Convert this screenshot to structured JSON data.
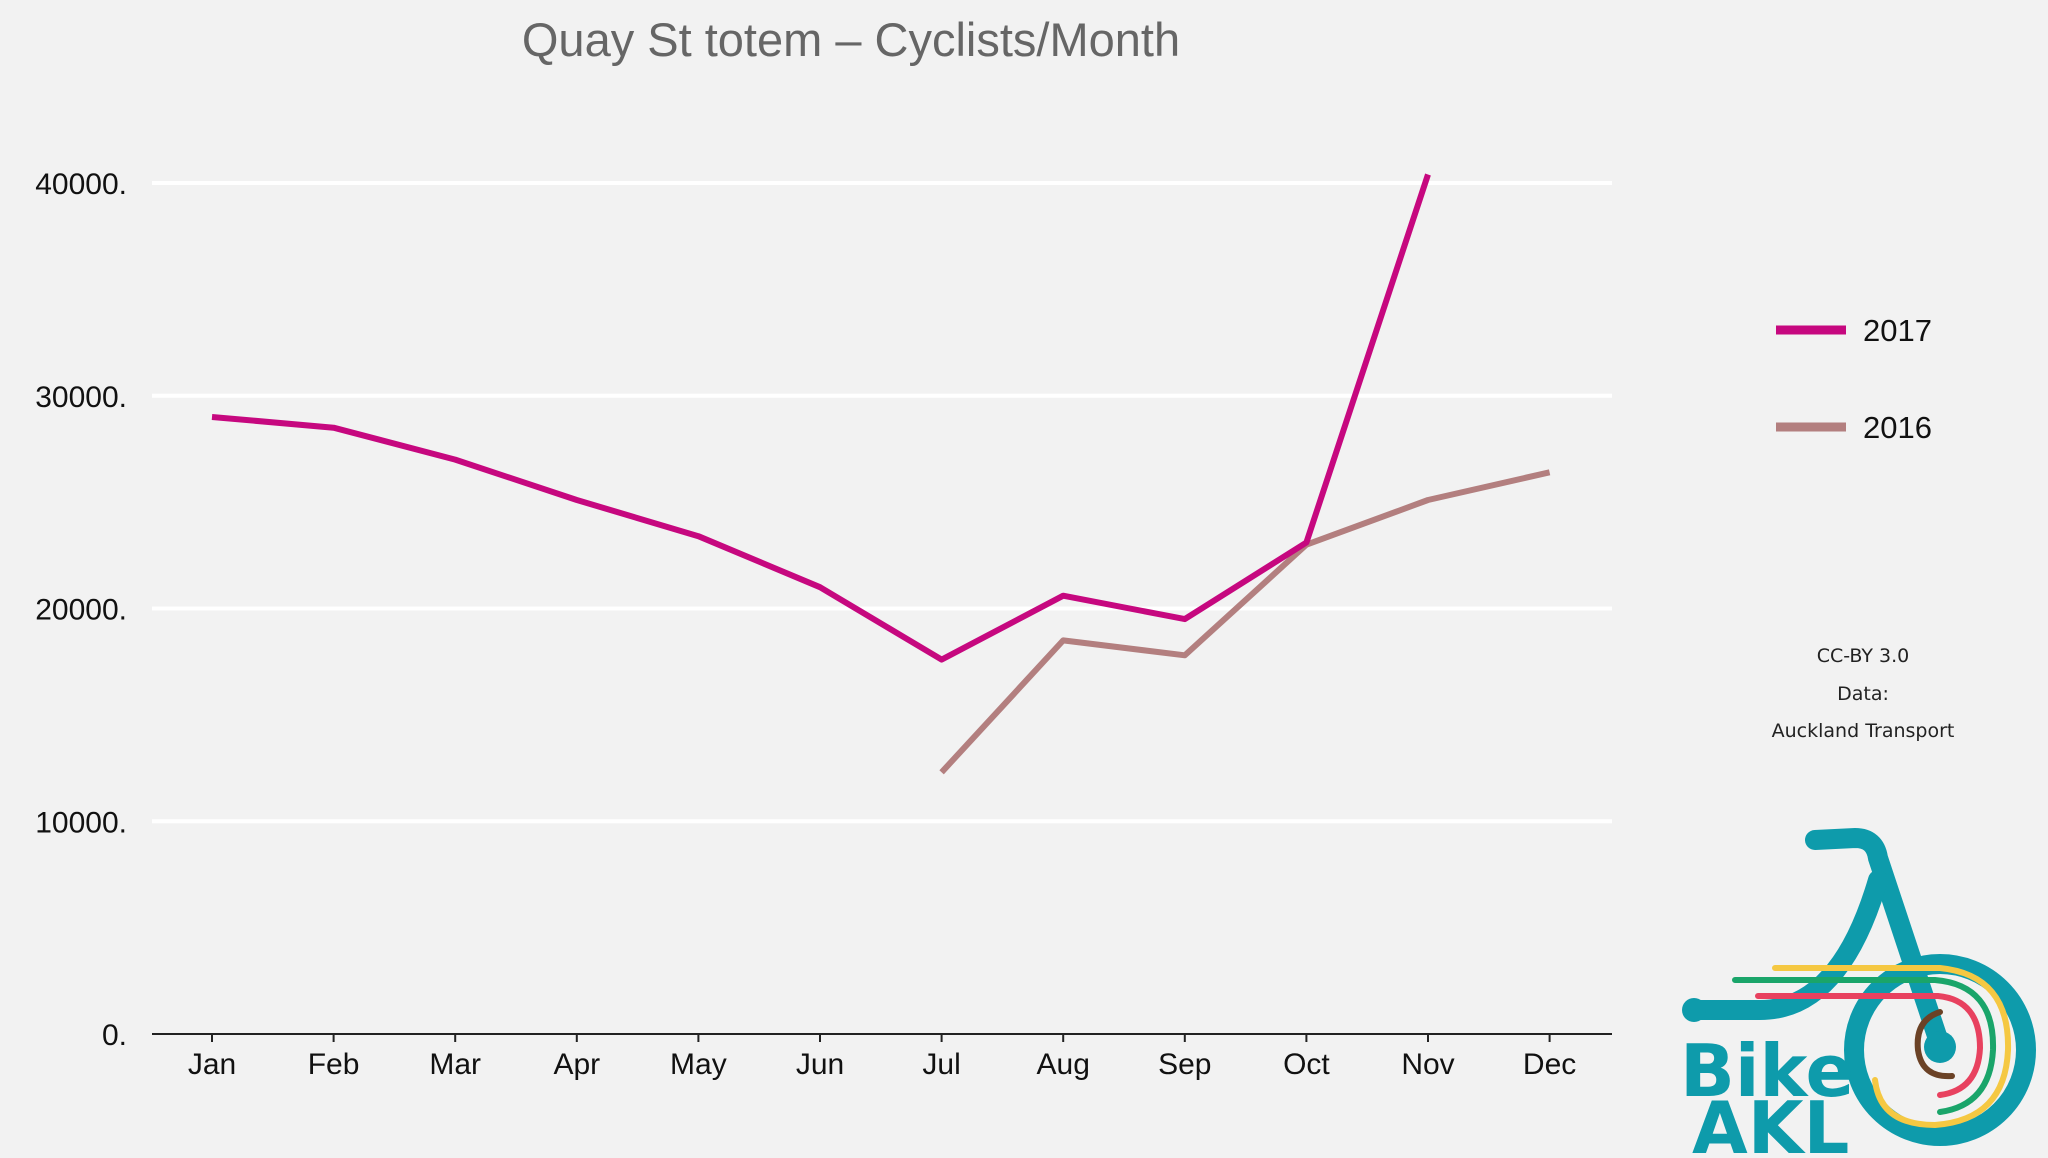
{
  "chart_data": {
    "type": "line",
    "title": "Quay St totem – Cyclists/Month",
    "xlabel": "",
    "ylabel": "",
    "categories": [
      "Jan",
      "Feb",
      "Mar",
      "Apr",
      "May",
      "Jun",
      "Jul",
      "Aug",
      "Sep",
      "Oct",
      "Nov",
      "Dec"
    ],
    "y_ticks": [
      "0.",
      "10000.",
      "20000.",
      "30000.",
      "40000."
    ],
    "y_tick_values": [
      0,
      10000,
      20000,
      30000,
      40000
    ],
    "ylim": [
      0,
      41500
    ],
    "grid": true,
    "legend_position": "right",
    "series": [
      {
        "name": "2017",
        "color": "#c6087f",
        "values": [
          29000,
          28500,
          27000,
          25100,
          23400,
          21000,
          17600,
          20600,
          19500,
          23100,
          40400,
          null
        ]
      },
      {
        "name": "2016",
        "color": "#b37f7f",
        "values": [
          null,
          null,
          null,
          null,
          null,
          null,
          12300,
          18500,
          17800,
          23000,
          25100,
          26400
        ]
      }
    ]
  },
  "credits": {
    "line1": "CC-BY 3.0",
    "line2": "Data:",
    "line3": "Auckland Transport"
  },
  "logo": {
    "word1": "Bike",
    "word2": "AKL",
    "color_primary": "#0e9bab",
    "color_yellow": "#f5c842",
    "color_green": "#1aa56a",
    "color_red": "#e8415f",
    "color_brown": "#6b4226"
  }
}
